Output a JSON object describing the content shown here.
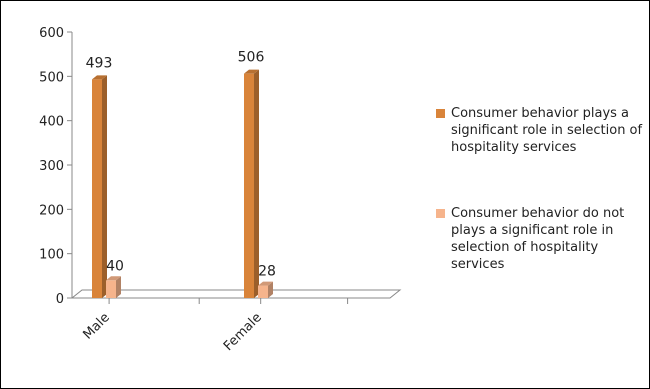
{
  "chart_data": {
    "type": "bar",
    "title": "",
    "xlabel": "",
    "ylabel": "",
    "categories": [
      "Male",
      "Female"
    ],
    "ylim": [
      0,
      600
    ],
    "yticks": [
      0,
      100,
      200,
      300,
      400,
      500,
      600
    ],
    "grid": false,
    "legend_position": "right",
    "series": [
      {
        "name": "Consumer behavior plays a significant role in selection of hospitality services",
        "values": [
          493,
          506
        ],
        "labels": [
          "493",
          "506"
        ],
        "color": "#D9843A"
      },
      {
        "name": "Consumer behavior do not plays a significant role in selection of hospitality services",
        "values": [
          40,
          28
        ],
        "labels": [
          "40",
          "28"
        ],
        "color": "#F6B48C"
      }
    ]
  }
}
